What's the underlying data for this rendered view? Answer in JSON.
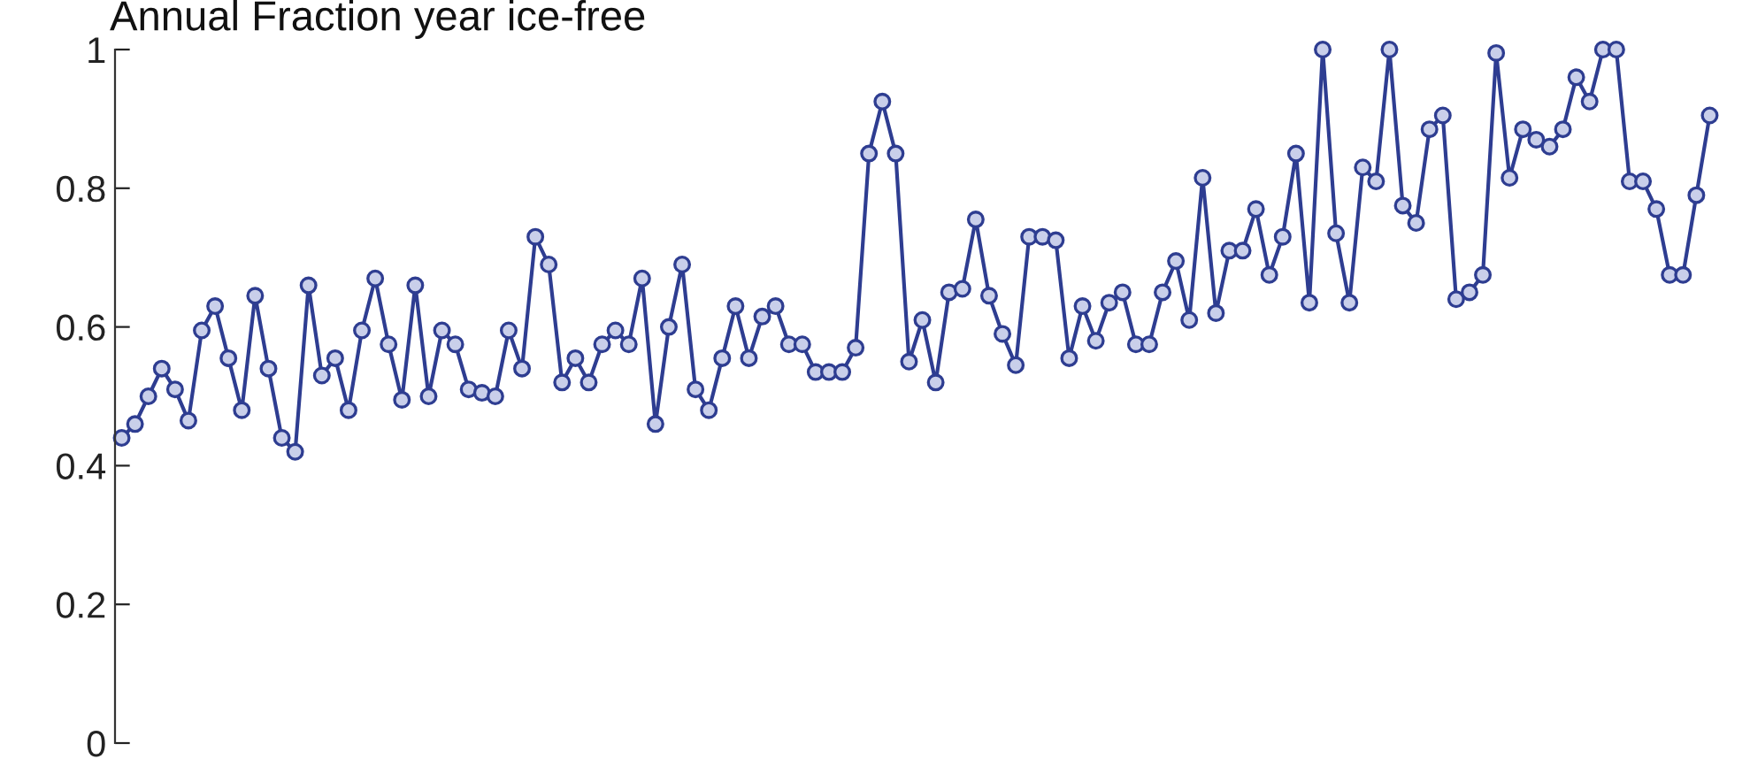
{
  "chart_data": {
    "type": "line",
    "title": "Annual Fraction year ice-free",
    "categories": [
      null,
      null,
      null,
      null,
      null,
      null,
      null,
      null,
      null,
      null,
      null,
      null,
      null,
      null,
      null,
      null,
      null,
      null,
      null,
      null,
      null,
      null,
      null,
      null,
      null,
      null,
      null,
      null,
      null,
      null,
      null,
      null,
      null,
      null,
      null,
      null,
      null,
      null,
      null,
      null,
      null,
      null,
      null,
      null,
      null,
      null,
      null,
      null,
      null,
      null,
      null,
      null,
      null,
      null,
      null,
      null,
      null,
      null,
      null,
      null,
      null,
      null,
      null,
      null,
      null,
      null,
      null,
      null,
      null,
      null,
      null,
      null,
      null,
      null,
      null,
      null,
      null,
      null,
      null,
      null,
      null,
      null,
      null,
      null,
      null,
      null,
      null,
      null,
      null,
      null,
      null,
      null,
      null,
      null,
      null,
      null,
      null,
      null,
      null,
      null,
      null,
      null,
      null,
      null,
      null,
      null,
      null,
      null,
      null,
      null,
      null,
      null,
      null,
      null,
      null,
      null,
      null,
      null,
      null,
      null
    ],
    "series": [
      {
        "color": "#2e3d91",
        "values": [
          0.44,
          0.46,
          0.5,
          0.54,
          0.51,
          0.465,
          0.595,
          0.63,
          0.555,
          0.48,
          0.645,
          0.54,
          0.44,
          0.42,
          0.66,
          0.53,
          0.555,
          0.48,
          0.595,
          0.67,
          0.575,
          0.495,
          0.66,
          0.5,
          0.595,
          0.575,
          0.51,
          0.505,
          0.5,
          0.595,
          0.54,
          0.73,
          0.69,
          0.52,
          0.555,
          0.52,
          0.575,
          0.595,
          0.575,
          0.67,
          0.46,
          0.6,
          0.69,
          0.51,
          0.48,
          0.555,
          0.63,
          0.555,
          0.615,
          0.63,
          0.575,
          0.575,
          0.535,
          0.535,
          0.535,
          0.57,
          0.85,
          0.925,
          0.85,
          0.55,
          0.61,
          0.52,
          0.65,
          0.655,
          0.755,
          0.645,
          0.59,
          0.545,
          0.73,
          0.73,
          0.725,
          0.555,
          0.63,
          0.58,
          0.635,
          0.65,
          0.575,
          0.575,
          0.65,
          0.695,
          0.61,
          0.815,
          0.62,
          0.71,
          0.71,
          0.77,
          0.675,
          0.73,
          0.85,
          0.635,
          1.0,
          0.735,
          0.635,
          0.83,
          0.81,
          1.0,
          0.775,
          0.75,
          0.885,
          0.905,
          0.64,
          0.65,
          0.675,
          0.995,
          0.815,
          0.885,
          0.87,
          0.86,
          0.885,
          0.96,
          0.925,
          1.0,
          1.0,
          0.81,
          0.81,
          0.77,
          0.675,
          0.675,
          0.79,
          0.905
        ]
      }
    ],
    "ylim": [
      0,
      1
    ],
    "yticks": [
      0,
      0.2,
      0.4,
      0.6,
      0.8,
      1
    ],
    "tick_labels": "y",
    "marker": "circle",
    "line_style": "solid",
    "grid": false,
    "legend": false
  }
}
